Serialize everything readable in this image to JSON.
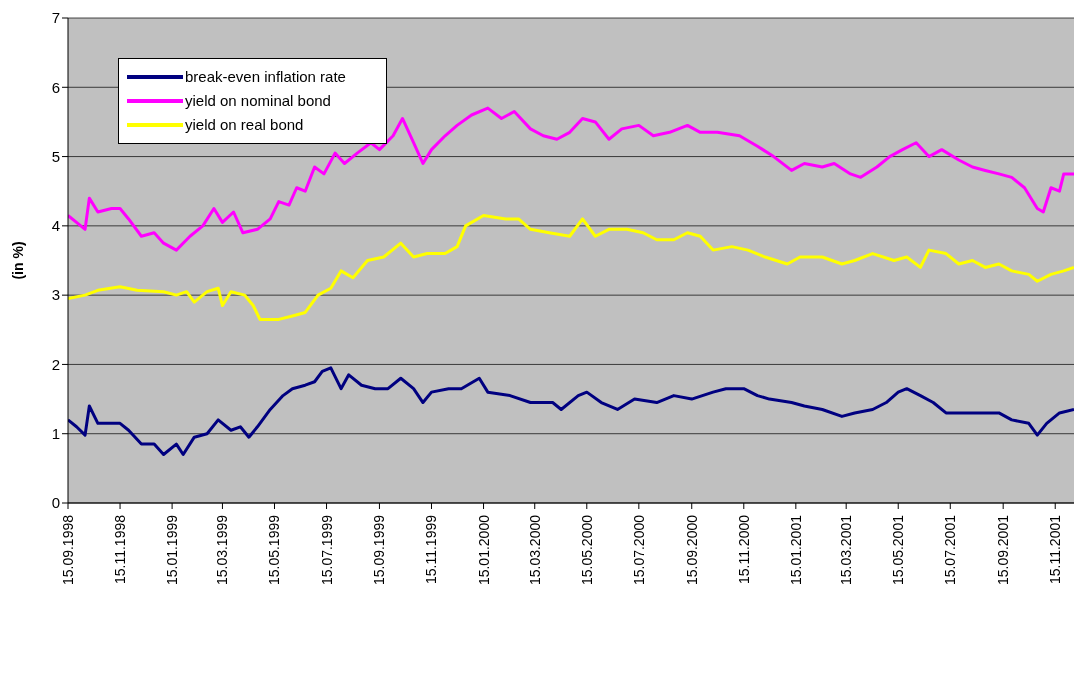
{
  "chart_data": {
    "type": "line",
    "ylabel": "(in %)",
    "ylim": [
      0,
      7
    ],
    "yticks": [
      0,
      1,
      2,
      3,
      4,
      5,
      6,
      7
    ],
    "xlim": [
      "1998-09-15",
      "2001-12-07"
    ],
    "xticks": [
      {
        "value": "1998-09-15",
        "label": "15.09.1998"
      },
      {
        "value": "1998-11-15",
        "label": "15.11.1998"
      },
      {
        "value": "1999-01-15",
        "label": "15.01.1999"
      },
      {
        "value": "1999-03-15",
        "label": "15.03.1999"
      },
      {
        "value": "1999-05-15",
        "label": "15.05.1999"
      },
      {
        "value": "1999-07-15",
        "label": "15.07.1999"
      },
      {
        "value": "1999-09-15",
        "label": "15.09.1999"
      },
      {
        "value": "1999-11-15",
        "label": "15.11.1999"
      },
      {
        "value": "2000-01-15",
        "label": "15.01.2000"
      },
      {
        "value": "2000-03-15",
        "label": "15.03.2000"
      },
      {
        "value": "2000-05-15",
        "label": "15.05.2000"
      },
      {
        "value": "2000-07-15",
        "label": "15.07.2000"
      },
      {
        "value": "2000-09-15",
        "label": "15.09.2000"
      },
      {
        "value": "2000-11-15",
        "label": "15.11.2000"
      },
      {
        "value": "2001-01-15",
        "label": "15.01.2001"
      },
      {
        "value": "2001-03-15",
        "label": "15.03.2001"
      },
      {
        "value": "2001-05-15",
        "label": "15.05.2001"
      },
      {
        "value": "2001-07-15",
        "label": "15.07.2001"
      },
      {
        "value": "2001-09-15",
        "label": "15.09.2001"
      },
      {
        "value": "2001-11-15",
        "label": "15.11.2001"
      }
    ],
    "grid": "y",
    "legend": "top left",
    "marker": "none",
    "line_style": "solid",
    "series": [
      {
        "name": "break-even inflation rate",
        "color": "#000080",
        "x": [
          "1998-09-15",
          "1998-09-25",
          "1998-10-05",
          "1998-10-10",
          "1998-10-20",
          "1998-11-15",
          "1998-11-25",
          "1998-12-10",
          "1998-12-25",
          "1999-01-05",
          "1999-01-20",
          "1999-01-28",
          "1999-02-10",
          "1999-02-25",
          "1999-03-10",
          "1999-03-25",
          "1999-04-05",
          "1999-04-15",
          "1999-04-25",
          "1999-05-10",
          "1999-05-25",
          "1999-06-05",
          "1999-06-20",
          "1999-07-01",
          "1999-07-10",
          "1999-07-20",
          "1999-08-01",
          "1999-08-10",
          "1999-08-25",
          "1999-09-10",
          "1999-09-25",
          "1999-10-10",
          "1999-10-25",
          "1999-11-05",
          "1999-11-15",
          "1999-12-05",
          "1999-12-20",
          "2000-01-10",
          "2000-01-20",
          "2000-02-15",
          "2000-03-10",
          "2000-04-05",
          "2000-04-15",
          "2000-05-05",
          "2000-05-15",
          "2000-06-01",
          "2000-06-20",
          "2000-07-10",
          "2000-08-05",
          "2000-08-25",
          "2000-09-15",
          "2000-10-10",
          "2000-10-25",
          "2000-11-15",
          "2000-12-01",
          "2000-12-15",
          "2001-01-10",
          "2001-01-25",
          "2001-02-15",
          "2001-03-10",
          "2001-03-25",
          "2001-04-15",
          "2001-05-01",
          "2001-05-15",
          "2001-05-25",
          "2001-06-10",
          "2001-06-25",
          "2001-07-10",
          "2001-07-25",
          "2001-08-10",
          "2001-08-25",
          "2001-09-10",
          "2001-09-25",
          "2001-10-15",
          "2001-10-25",
          "2001-11-05",
          "2001-11-20",
          "2001-12-07"
        ],
        "values": [
          1.2,
          1.1,
          0.98,
          1.4,
          1.15,
          1.15,
          1.05,
          0.85,
          0.85,
          0.7,
          0.85,
          0.7,
          0.95,
          1.0,
          1.2,
          1.05,
          1.1,
          0.95,
          1.1,
          1.35,
          1.55,
          1.65,
          1.7,
          1.75,
          1.9,
          1.95,
          1.65,
          1.85,
          1.7,
          1.65,
          1.65,
          1.8,
          1.65,
          1.45,
          1.6,
          1.65,
          1.65,
          1.8,
          1.6,
          1.55,
          1.45,
          1.45,
          1.35,
          1.55,
          1.6,
          1.45,
          1.35,
          1.5,
          1.45,
          1.55,
          1.5,
          1.6,
          1.65,
          1.65,
          1.55,
          1.5,
          1.45,
          1.4,
          1.35,
          1.25,
          1.3,
          1.35,
          1.45,
          1.6,
          1.65,
          1.55,
          1.45,
          1.3,
          1.3,
          1.3,
          1.3,
          1.3,
          1.2,
          1.15,
          0.98,
          1.15,
          1.3,
          1.35
        ]
      },
      {
        "name": "yield on nominal bond",
        "color": "#ff00ff",
        "x": [
          "1998-09-15",
          "1998-09-25",
          "1998-10-05",
          "1998-10-10",
          "1998-10-20",
          "1998-11-05",
          "1998-11-15",
          "1998-11-25",
          "1998-12-10",
          "1998-12-25",
          "1999-01-05",
          "1999-01-20",
          "1999-02-05",
          "1999-02-20",
          "1999-03-05",
          "1999-03-15",
          "1999-03-28",
          "1999-04-08",
          "1999-04-25",
          "1999-05-10",
          "1999-05-20",
          "1999-06-01",
          "1999-06-10",
          "1999-06-20",
          "1999-07-01",
          "1999-07-12",
          "1999-07-25",
          "1999-08-05",
          "1999-08-20",
          "1999-09-05",
          "1999-09-15",
          "1999-10-01",
          "1999-10-12",
          "1999-10-25",
          "1999-11-05",
          "1999-11-15",
          "1999-12-01",
          "1999-12-15",
          "2000-01-01",
          "2000-01-20",
          "2000-02-05",
          "2000-02-20",
          "2000-03-10",
          "2000-03-25",
          "2000-04-10",
          "2000-04-25",
          "2000-05-10",
          "2000-05-25",
          "2000-06-10",
          "2000-06-25",
          "2000-07-15",
          "2000-08-01",
          "2000-08-20",
          "2000-09-10",
          "2000-09-25",
          "2000-10-15",
          "2000-11-10",
          "2000-12-01",
          "2000-12-20",
          "2001-01-10",
          "2001-01-25",
          "2001-02-15",
          "2001-03-01",
          "2001-03-20",
          "2001-04-01",
          "2001-04-20",
          "2001-05-05",
          "2001-05-20",
          "2001-06-05",
          "2001-06-20",
          "2001-07-05",
          "2001-07-25",
          "2001-08-10",
          "2001-08-25",
          "2001-09-10",
          "2001-09-25",
          "2001-10-10",
          "2001-10-25",
          "2001-11-01",
          "2001-11-10",
          "2001-11-20",
          "2001-11-25",
          "2001-12-07"
        ],
        "values": [
          4.15,
          4.05,
          3.95,
          4.4,
          4.2,
          4.25,
          4.25,
          4.1,
          3.85,
          3.9,
          3.75,
          3.65,
          3.85,
          4.0,
          4.25,
          4.05,
          4.2,
          3.9,
          3.95,
          4.1,
          4.35,
          4.3,
          4.55,
          4.5,
          4.85,
          4.75,
          5.05,
          4.9,
          5.05,
          5.2,
          5.1,
          5.3,
          5.55,
          5.2,
          4.9,
          5.1,
          5.3,
          5.45,
          5.6,
          5.7,
          5.55,
          5.65,
          5.4,
          5.3,
          5.25,
          5.35,
          5.55,
          5.5,
          5.25,
          5.4,
          5.45,
          5.3,
          5.35,
          5.45,
          5.35,
          5.35,
          5.3,
          5.15,
          5.0,
          4.8,
          4.9,
          4.85,
          4.9,
          4.75,
          4.7,
          4.85,
          5.0,
          5.1,
          5.2,
          5.0,
          5.1,
          4.95,
          4.85,
          4.8,
          4.75,
          4.7,
          4.55,
          4.25,
          4.2,
          4.55,
          4.5,
          4.75,
          4.75
        ]
      },
      {
        "name": "yield on real bond",
        "color": "#ffff00",
        "x": [
          "1998-09-15",
          "1998-10-05",
          "1998-10-20",
          "1998-11-15",
          "1998-12-05",
          "1999-01-05",
          "1999-01-20",
          "1999-02-01",
          "1999-02-10",
          "1999-02-25",
          "1999-03-10",
          "1999-03-15",
          "1999-03-25",
          "1999-04-10",
          "1999-04-20",
          "1999-04-28",
          "1999-05-20",
          "1999-06-05",
          "1999-06-20",
          "1999-07-05",
          "1999-07-20",
          "1999-08-01",
          "1999-08-15",
          "1999-09-01",
          "1999-09-20",
          "1999-10-10",
          "1999-10-25",
          "1999-11-10",
          "1999-12-01",
          "1999-12-15",
          "1999-12-25",
          "2000-01-15",
          "2000-02-10",
          "2000-02-25",
          "2000-03-10",
          "2000-04-01",
          "2000-04-25",
          "2000-05-10",
          "2000-05-25",
          "2000-06-10",
          "2000-07-01",
          "2000-07-20",
          "2000-08-05",
          "2000-08-25",
          "2000-09-10",
          "2000-09-25",
          "2000-10-10",
          "2000-11-01",
          "2000-11-20",
          "2000-12-10",
          "2001-01-05",
          "2001-01-20",
          "2001-02-15",
          "2001-03-10",
          "2001-03-25",
          "2001-04-15",
          "2001-05-10",
          "2001-05-25",
          "2001-06-10",
          "2001-06-20",
          "2001-07-10",
          "2001-07-25",
          "2001-08-10",
          "2001-08-25",
          "2001-09-10",
          "2001-09-25",
          "2001-10-15",
          "2001-10-25",
          "2001-11-10",
          "2001-11-25",
          "2001-12-07"
        ],
        "values": [
          2.95,
          3.0,
          3.07,
          3.12,
          3.07,
          3.05,
          3.0,
          3.05,
          2.9,
          3.05,
          3.1,
          2.85,
          3.05,
          3.0,
          2.85,
          2.65,
          2.65,
          2.7,
          2.75,
          3.0,
          3.1,
          3.35,
          3.25,
          3.5,
          3.55,
          3.75,
          3.55,
          3.6,
          3.6,
          3.7,
          4.0,
          4.15,
          4.1,
          4.1,
          3.95,
          3.9,
          3.85,
          4.1,
          3.85,
          3.95,
          3.95,
          3.9,
          3.8,
          3.8,
          3.9,
          3.85,
          3.65,
          3.7,
          3.65,
          3.55,
          3.45,
          3.55,
          3.55,
          3.45,
          3.5,
          3.6,
          3.5,
          3.55,
          3.4,
          3.65,
          3.6,
          3.45,
          3.5,
          3.4,
          3.45,
          3.35,
          3.3,
          3.2,
          3.3,
          3.35,
          3.4
        ]
      }
    ]
  }
}
